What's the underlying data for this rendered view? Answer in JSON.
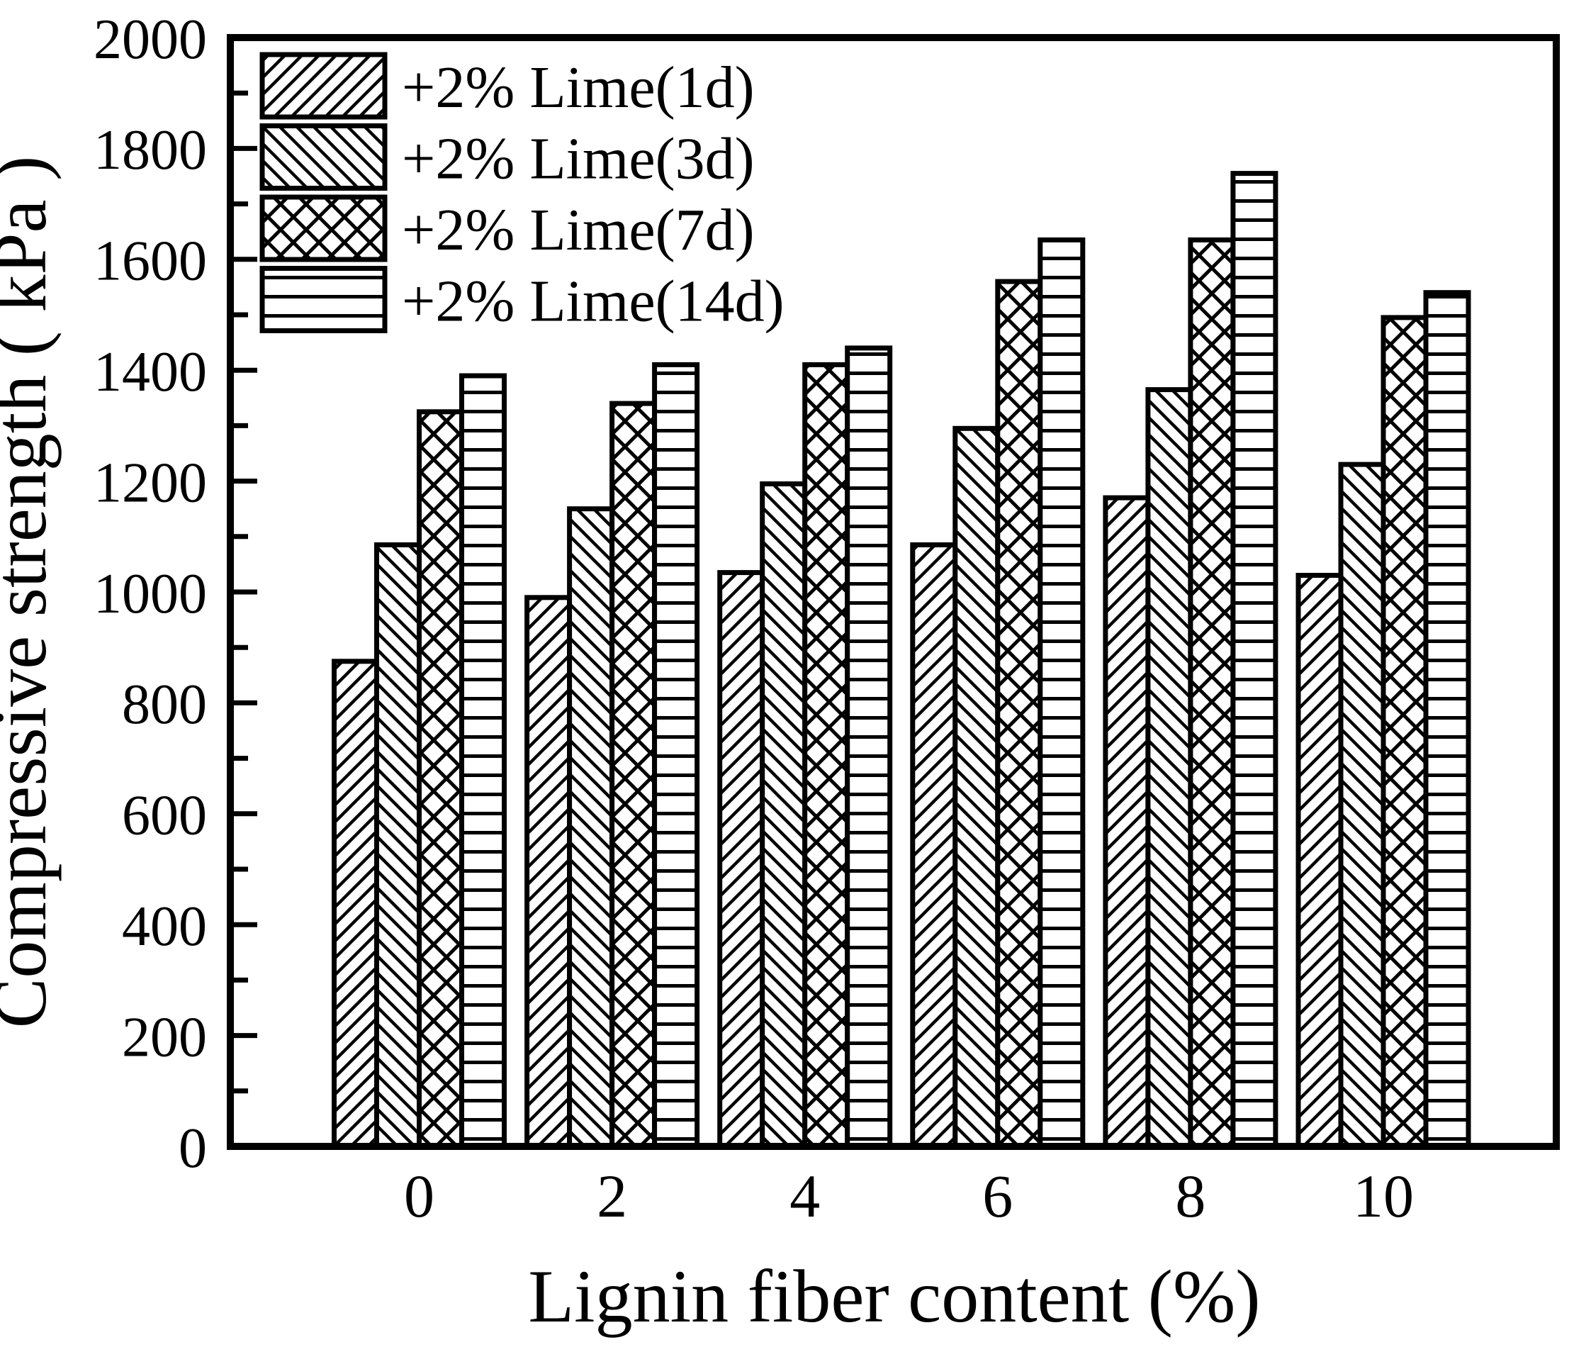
{
  "chart_data": {
    "type": "bar",
    "title": "",
    "xlabel": "Lignin fiber content (%)",
    "ylabel": "Compressive strength ( kPa )",
    "categories": [
      "0",
      "2",
      "4",
      "6",
      "8",
      "10"
    ],
    "series": [
      {
        "name": "+2% Lime(1d)",
        "pattern": "diagonal-forward",
        "values": [
          875,
          990,
          1035,
          1085,
          1170,
          1030
        ]
      },
      {
        "name": "+2% Lime(3d)",
        "pattern": "diagonal-backward",
        "values": [
          1085,
          1150,
          1195,
          1295,
          1365,
          1230
        ]
      },
      {
        "name": "+2% Lime(7d)",
        "pattern": "crosshatch",
        "values": [
          1325,
          1340,
          1410,
          1560,
          1635,
          1495
        ]
      },
      {
        "name": "+2% Lime(14d)",
        "pattern": "horizontal",
        "values": [
          1390,
          1410,
          1440,
          1635,
          1755,
          1540
        ]
      }
    ],
    "ylim": [
      0,
      2000
    ],
    "y_major_tick": 200,
    "y_minor_tick": 100,
    "y_tick_labels": [
      "0",
      "200",
      "400",
      "600",
      "800",
      "1000",
      "1200",
      "1400",
      "1600",
      "1800",
      "2000"
    ],
    "legend_position": "top-left",
    "grid": false,
    "colors": {
      "foreground": "#000000",
      "background": "#ffffff"
    }
  }
}
